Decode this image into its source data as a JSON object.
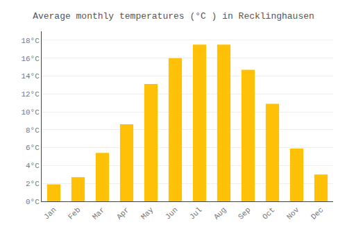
{
  "chart_data": {
    "type": "bar",
    "title": "Average monthly temperatures (°C ) in Recklinghausen",
    "categories": [
      "Jan",
      "Feb",
      "Mar",
      "Apr",
      "May",
      "Jun",
      "Jul",
      "Aug",
      "Sep",
      "Oct",
      "Nov",
      "Dec"
    ],
    "values": [
      1.9,
      2.7,
      5.4,
      8.6,
      13.1,
      16.0,
      17.5,
      17.5,
      14.7,
      10.9,
      5.9,
      3.0
    ],
    "color": "#FFC107",
    "ylim": [
      0,
      19.0
    ],
    "yticks": [
      {
        "value": 0,
        "label": "0°C"
      },
      {
        "value": 2,
        "label": "2°C"
      },
      {
        "value": 4,
        "label": "4°C"
      },
      {
        "value": 6,
        "label": "6°C"
      },
      {
        "value": 8,
        "label": "8°C"
      },
      {
        "value": 10,
        "label": "10°C"
      },
      {
        "value": 12,
        "label": "12°C"
      },
      {
        "value": 14,
        "label": "14°C"
      },
      {
        "value": 16,
        "label": "16°C"
      },
      {
        "value": 18,
        "label": "18°C"
      }
    ],
    "grid": true
  }
}
